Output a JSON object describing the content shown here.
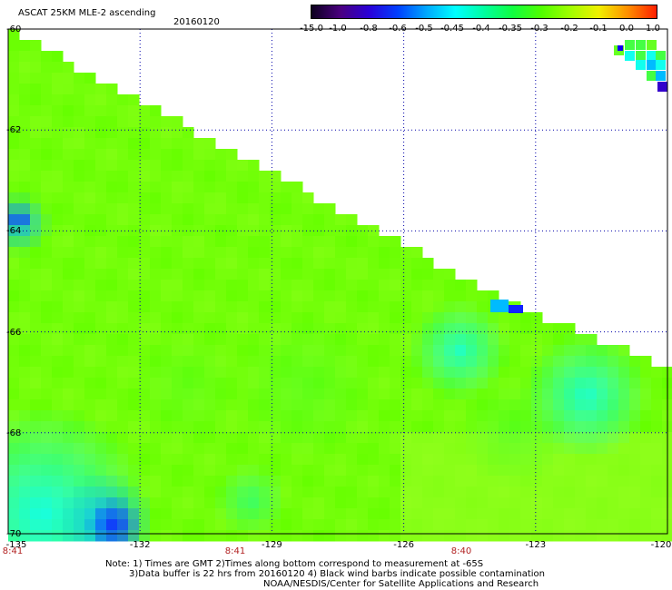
{
  "header": {
    "title": "ASCAT 25KM MLE-2 ascending",
    "date": "20160120"
  },
  "colorbar": {
    "labels": [
      "-15.0",
      "-1.0",
      "-0.8",
      "-0.6",
      "-0.5",
      "-0.45",
      "-0.4",
      "-0.35",
      "-0.3",
      "-0.2",
      "-0.1",
      "0.0",
      "1.0"
    ],
    "colors": [
      "#0d0020",
      "#4a0080",
      "#2a00d8",
      "#0040ff",
      "#00a8ff",
      "#00ffff",
      "#00ffa0",
      "#10ff40",
      "#50ff00",
      "#a0ff00",
      "#f0f000",
      "#ff9000",
      "#ff2000"
    ]
  },
  "map": {
    "lat_labels": [
      "-60",
      "-62",
      "-64",
      "-66",
      "-68",
      "-70"
    ],
    "lon_labels": [
      "-135",
      "-132",
      "-129",
      "-126",
      "-123",
      "-120"
    ],
    "pass_times": [
      "8:41",
      "8:41",
      "8:40"
    ],
    "lat_range": [
      -70,
      -60
    ],
    "lon_range": [
      -135,
      -120
    ]
  },
  "notes": {
    "line1": "Note: 1) Times are GMT 2)Times along bottom correspond to measurement at -65S",
    "line2": "3)Data buffer is 22 hrs from 20160120 4) Black wind barbs indicate possible contamination",
    "line3": "NOAA/NESDIS/Center for Satellite Applications and Research"
  }
}
